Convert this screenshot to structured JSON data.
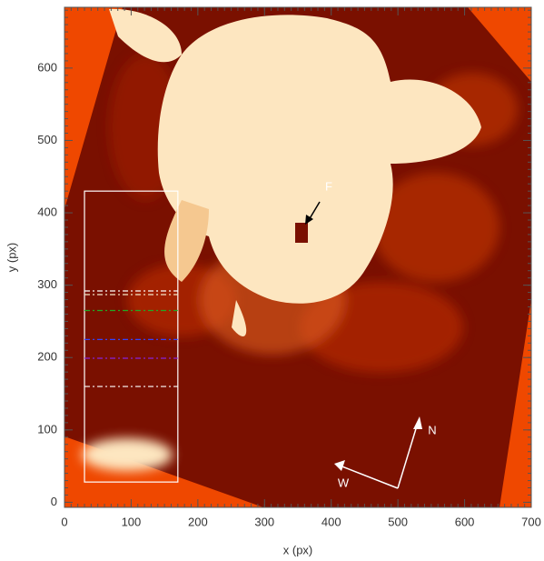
{
  "chart_data": {
    "type": "image",
    "xlabel": "x (px)",
    "ylabel": "y (px)",
    "xlim": [
      0,
      700
    ],
    "ylim": [
      -7,
      684
    ],
    "xticks": [
      0,
      100,
      200,
      300,
      400,
      500,
      600,
      700
    ],
    "yticks": [
      0,
      100,
      200,
      300,
      400,
      500,
      600
    ],
    "box": {
      "x": [
        30,
        170
      ],
      "y": [
        28,
        430
      ],
      "color": "#ffffff"
    },
    "cuts": [
      {
        "y": 292,
        "color": "#ffffff"
      },
      {
        "y": 287,
        "color": "#f5e6c8"
      },
      {
        "y": 265,
        "color": "#22aa22"
      },
      {
        "y": 225,
        "color": "#3344ff"
      },
      {
        "y": 199,
        "color": "#8822dd"
      },
      {
        "y": 160,
        "color": "#ffffff"
      }
    ],
    "annotations": [
      {
        "text": "F"
      },
      {
        "text": "N"
      },
      {
        "text": "W"
      }
    ]
  }
}
